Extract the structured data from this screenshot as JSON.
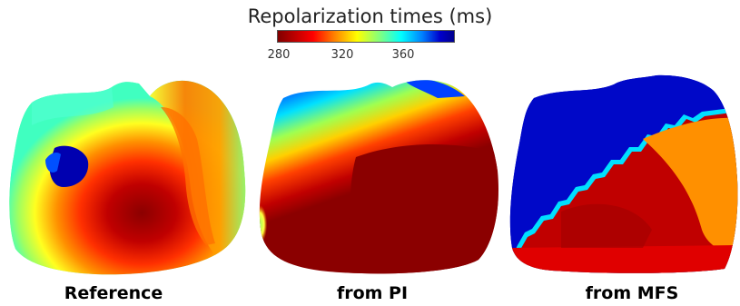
{
  "colorbar": {
    "title": "Repolarization times (ms)",
    "ticks": [
      "280",
      "320",
      "360"
    ]
  },
  "panels": [
    {
      "label": "Reference"
    },
    {
      "label": "from PI"
    },
    {
      "label": "from MFS"
    }
  ]
}
